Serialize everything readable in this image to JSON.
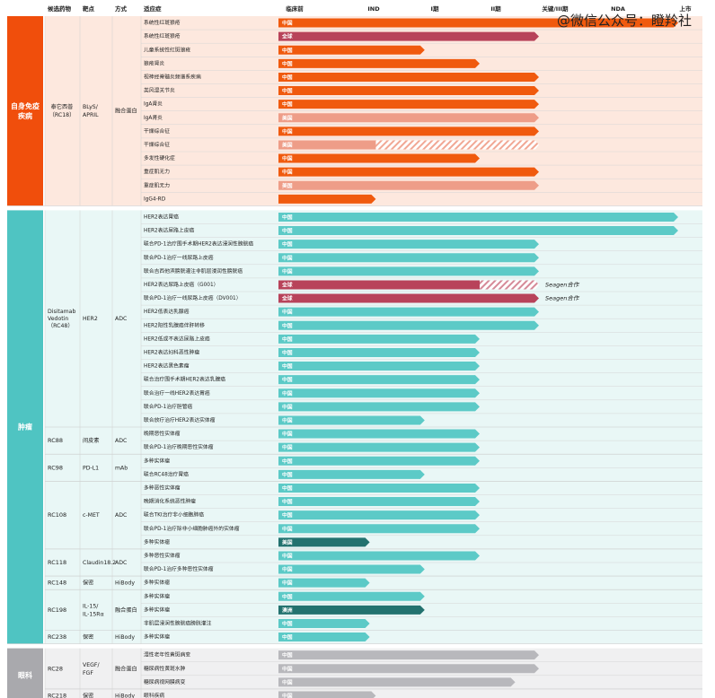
{
  "watermark": "@微信公众号：瞪羚社",
  "chart_data": {
    "type": "bar",
    "headers": {
      "drug": "候选药物",
      "target": "靶点",
      "method": "方式",
      "indication": "适应症"
    },
    "stages": [
      "临床前",
      "IND",
      "I期",
      "II期",
      "关键/III期",
      "NDA",
      "上市"
    ],
    "colors": {
      "autoimmune_band": "#f04e0c",
      "autoimmune_bg": "#fde8de",
      "oncology_band": "#4fc4c2",
      "oncology_bg": "#e9f7f6",
      "ophthalmology_band": "#a9a9ad",
      "ophthalmology_bg": "#f0f0f1",
      "orange_bar": "#f05a0e",
      "salmon_bar": "#ee9d88",
      "teal_bar": "#5ccac7",
      "crimson_bar": "#b8435a",
      "dark_teal_bar": "#23726f",
      "gray_bar": "#b8b8bc"
    },
    "groups": [
      {
        "area": "自身免疫疾病",
        "theme": "autoimmune",
        "programs": [
          {
            "drug": "泰它西普（RC18）",
            "target": "BLyS/APRIL",
            "method": "融合蛋白",
            "rows": [
              {
                "indication": "系统性红斑狼疮",
                "region": "中国",
                "stage": 6,
                "color": "orange"
              },
              {
                "indication": "系统性红斑狼疮",
                "region": "全球",
                "stage": 4,
                "color": "crimson"
              },
              {
                "indication": "儿童系统性红斑狼疮",
                "region": "中国",
                "stage": 2.1,
                "color": "orange"
              },
              {
                "indication": "狼疮肾炎",
                "region": "中国",
                "stage": 3,
                "color": "orange"
              },
              {
                "indication": "视神经脊髓炎频谱系疾病",
                "region": "中国",
                "stage": 4,
                "color": "orange"
              },
              {
                "indication": "类风湿关节炎",
                "region": "中国",
                "stage": 4,
                "color": "orange"
              },
              {
                "indication": "IgA肾炎",
                "region": "中国",
                "stage": 4,
                "color": "orange"
              },
              {
                "indication": "IgA肾炎",
                "region": "美国",
                "stage": 4,
                "color": "salmon"
              },
              {
                "indication": "干燥综合征",
                "region": "中国",
                "stage": 4,
                "color": "orange"
              },
              {
                "indication": "干燥综合征",
                "region": "美国",
                "stage": 1.3,
                "color": "salmon",
                "hatch_to": 4
              },
              {
                "indication": "多发性硬化症",
                "region": "中国",
                "stage": 3,
                "color": "orange"
              },
              {
                "indication": "重症肌无力",
                "region": "中国",
                "stage": 4,
                "color": "orange"
              },
              {
                "indication": "重症肌无力",
                "region": "美国",
                "stage": 4,
                "color": "salmon"
              },
              {
                "indication": "IgG4-RD",
                "region": "",
                "stage": 1.3,
                "color": "orange"
              }
            ]
          }
        ]
      },
      {
        "area": "肿瘤",
        "theme": "oncology",
        "programs": [
          {
            "drug": "Disitamab Vedotin（RC48）",
            "target": "HER2",
            "method": "ADC",
            "rows": [
              {
                "indication": "HER2表达胃癌",
                "region": "中国",
                "stage": 6,
                "color": "teal"
              },
              {
                "indication": "HER2表达尿路上皮癌",
                "region": "中国",
                "stage": 6,
                "color": "teal"
              },
              {
                "indication": "联合PD-1治疗围手术期HER2表达浸润性膀胱癌",
                "region": "中国",
                "stage": 4,
                "color": "teal"
              },
              {
                "indication": "联合PD-1治疗一线尿路上皮癌",
                "region": "中国",
                "stage": 4,
                "color": "teal"
              },
              {
                "indication": "联合吉西他滨膀胱灌注非肌层浸润性膀胱癌",
                "region": "中国",
                "stage": 4,
                "color": "teal"
              },
              {
                "indication": "HER2表达尿路上皮癌（G001）",
                "region": "全球",
                "stage": 3,
                "color": "crimson",
                "hatch_to": 4,
                "partner": "Seagen合作"
              },
              {
                "indication": "联合PD-1治疗一线尿路上皮癌（DV001）",
                "region": "全球",
                "stage": 4,
                "color": "crimson",
                "partner": "Seagen合作"
              },
              {
                "indication": "HER2低表达乳腺癌",
                "region": "中国",
                "stage": 4,
                "color": "teal"
              },
              {
                "indication": "HER2阳性乳腺癌伴肝转移",
                "region": "中国",
                "stage": 4,
                "color": "teal"
              },
              {
                "indication": "HER2低或不表达尿路上皮癌",
                "region": "中国",
                "stage": 3,
                "color": "teal"
              },
              {
                "indication": "HER2表达妇科恶性肿瘤",
                "region": "中国",
                "stage": 3,
                "color": "teal"
              },
              {
                "indication": "HER2表达黑色素瘤",
                "region": "中国",
                "stage": 3,
                "color": "teal"
              },
              {
                "indication": "联合治疗围手术期HER2表达乳腺癌",
                "region": "中国",
                "stage": 3,
                "color": "teal"
              },
              {
                "indication": "联合治疗一线HER2表达胃癌",
                "region": "中国",
                "stage": 3,
                "color": "teal"
              },
              {
                "indication": "联合PD-1治疗胆管癌",
                "region": "中国",
                "stage": 3,
                "color": "teal"
              },
              {
                "indication": "联合放疗治疗HER2表达实体瘤",
                "region": "中国",
                "stage": 2.1,
                "color": "teal"
              }
            ]
          },
          {
            "drug": "RC88",
            "target": "间皮素",
            "method": "ADC",
            "rows": [
              {
                "indication": "晚期恶性实体瘤",
                "region": "中国",
                "stage": 3,
                "color": "teal"
              },
              {
                "indication": "联合PD-1治疗晚期恶性实体瘤",
                "region": "中国",
                "stage": 3,
                "color": "teal"
              }
            ]
          },
          {
            "drug": "RC98",
            "target": "PD-L1",
            "method": "mAb",
            "rows": [
              {
                "indication": "多种实体瘤",
                "region": "中国",
                "stage": 3,
                "color": "teal"
              },
              {
                "indication": "联合RC48治疗胃癌",
                "region": "中国",
                "stage": 2.1,
                "color": "teal"
              }
            ]
          },
          {
            "drug": "RC108",
            "target": "c-MET",
            "method": "ADC",
            "rows": [
              {
                "indication": "多种恶性实体瘤",
                "region": "中国",
                "stage": 3,
                "color": "teal"
              },
              {
                "indication": "晚期消化系统恶性肿瘤",
                "region": "中国",
                "stage": 3,
                "color": "teal"
              },
              {
                "indication": "联合TKI治疗非小细胞肺癌",
                "region": "中国",
                "stage": 3,
                "color": "teal"
              },
              {
                "indication": "联合PD-1治疗除非小细胞肺癌外的实体瘤",
                "region": "中国",
                "stage": 3,
                "color": "teal"
              },
              {
                "indication": "多种实体瘤",
                "region": "美国",
                "stage": 1.2,
                "color": "dark_teal"
              }
            ]
          },
          {
            "drug": "RC118",
            "target": "Claudin18.2",
            "method": "ADC",
            "rows": [
              {
                "indication": "多种恶性实体瘤",
                "region": "中国",
                "stage": 3,
                "color": "teal"
              },
              {
                "indication": "联合PD-1治疗多种恶性实体瘤",
                "region": "中国",
                "stage": 2.1,
                "color": "teal"
              }
            ]
          },
          {
            "drug": "RC148",
            "target": "保密",
            "method": "HiBody",
            "rows": [
              {
                "indication": "多种实体瘤",
                "region": "中国",
                "stage": 1.2,
                "color": "teal"
              }
            ]
          },
          {
            "drug": "RC198",
            "target": "IL-15/IL-15Rα",
            "method": "融合蛋白",
            "rows": [
              {
                "indication": "多种实体瘤",
                "region": "中国",
                "stage": 2.1,
                "color": "teal"
              },
              {
                "indication": "多种实体瘤",
                "region": "澳洲",
                "stage": 2.1,
                "color": "dark_teal"
              },
              {
                "indication": "非肌层浸润性膀胱癌膀胱灌注",
                "region": "中国",
                "stage": 1.2,
                "color": "teal"
              }
            ]
          },
          {
            "drug": "RC238",
            "target": "保密",
            "method": "HiBody",
            "rows": [
              {
                "indication": "多种实体瘤",
                "region": "中国",
                "stage": 1.2,
                "color": "teal"
              }
            ]
          }
        ]
      },
      {
        "area": "眼科",
        "theme": "ophthalmology",
        "programs": [
          {
            "drug": "RC28",
            "target": "VEGF/FGF",
            "method": "融合蛋白",
            "rows": [
              {
                "indication": "湿性老年性黄斑病变",
                "region": "中国",
                "stage": 4,
                "color": "gray"
              },
              {
                "indication": "糖尿病性黄斑水肿",
                "region": "中国",
                "stage": 4,
                "color": "gray"
              },
              {
                "indication": "糖尿病视网膜病变",
                "region": "中国",
                "stage": 3.6,
                "color": "gray"
              }
            ]
          },
          {
            "drug": "RC218",
            "target": "保密",
            "method": "HiBody",
            "rows": [
              {
                "indication": "眼科疾病",
                "region": "中国",
                "stage": 1.3,
                "color": "gray"
              }
            ]
          }
        ]
      }
    ]
  }
}
